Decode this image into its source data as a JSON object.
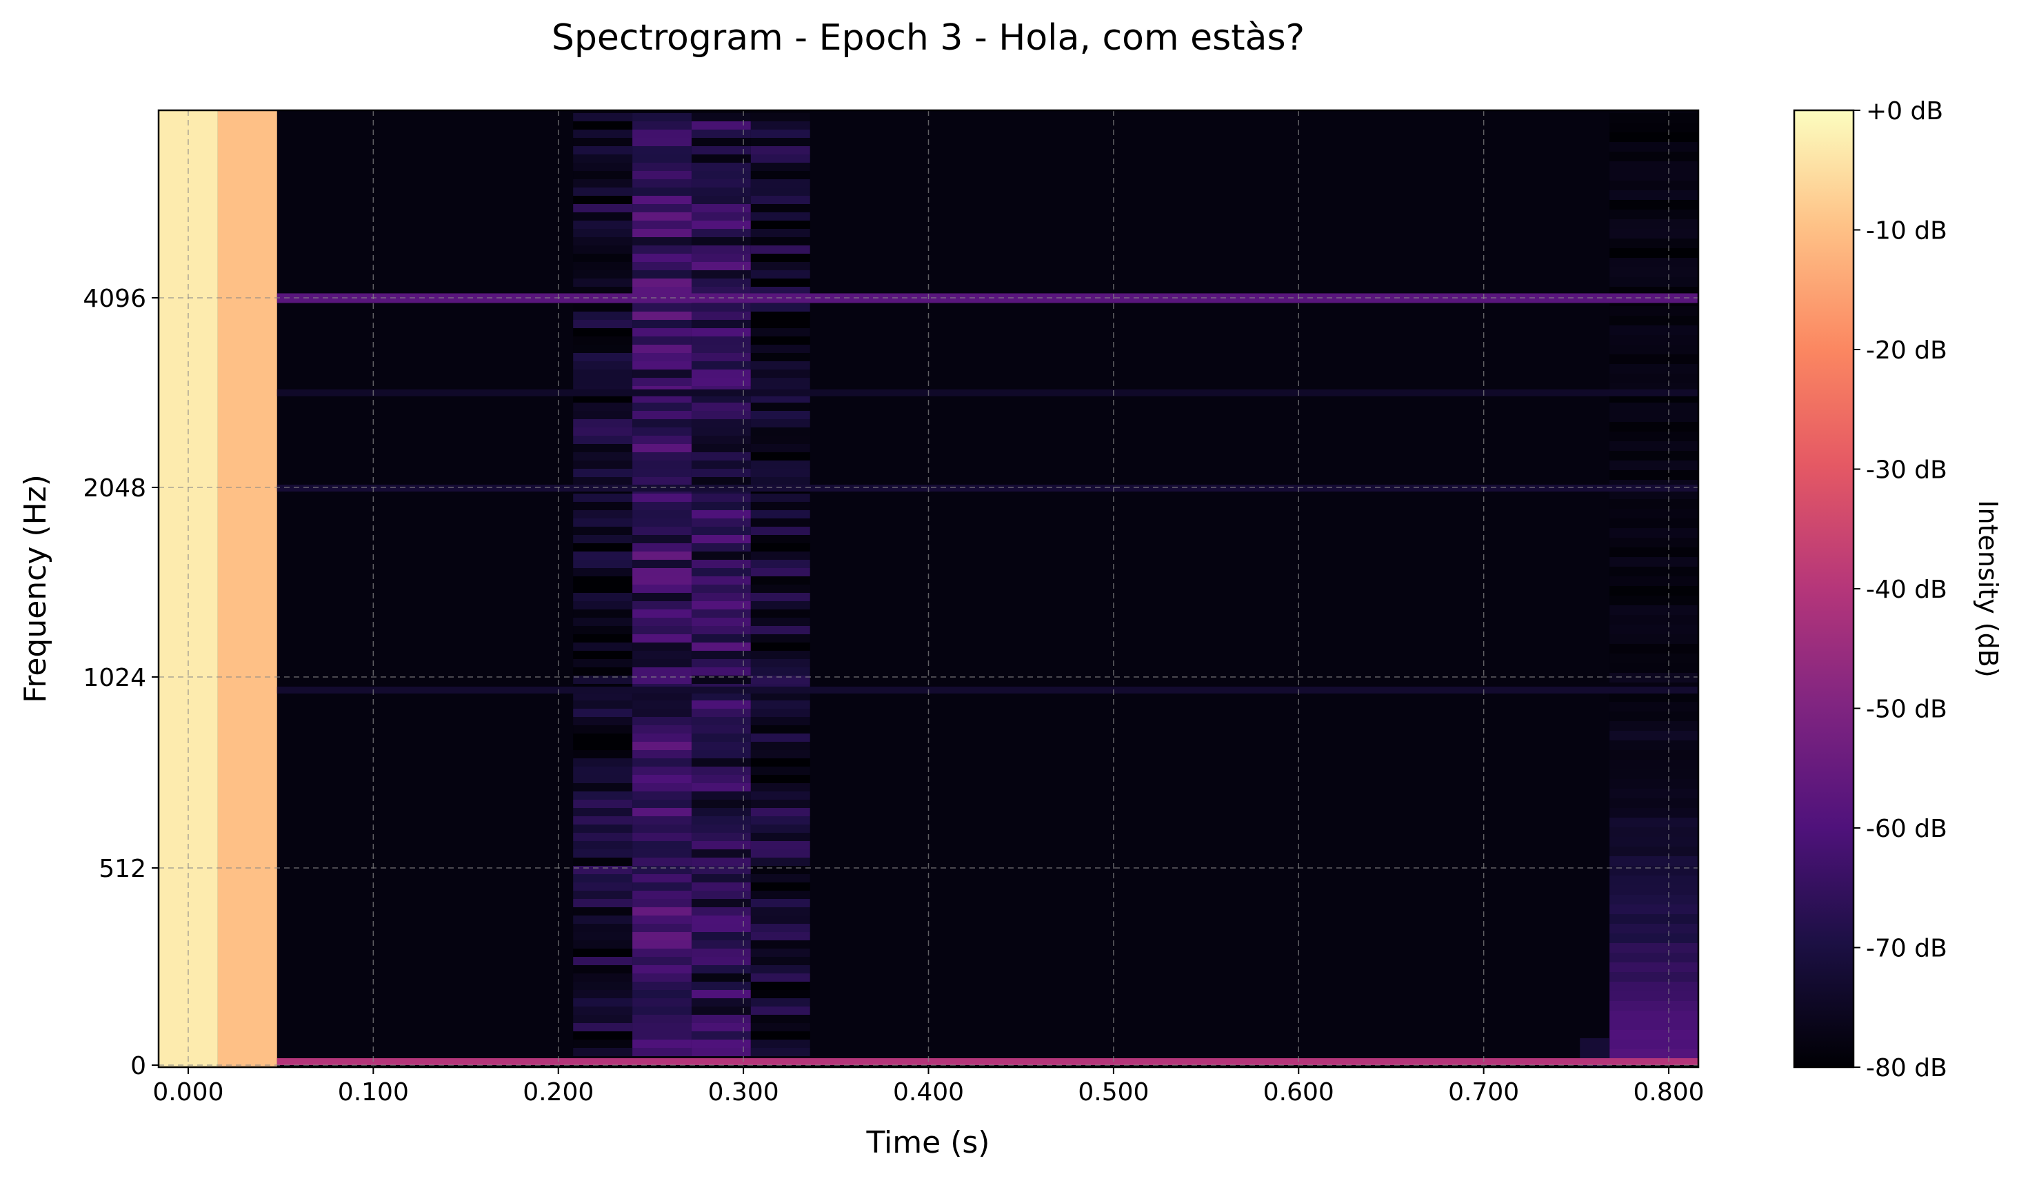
{
  "chart_data": {
    "type": "heatmap",
    "title": "Spectrogram - Epoch 3 - Hola, com estàs?",
    "xlabel": "Time (s)",
    "ylabel": "Frequency (Hz)",
    "xlim": [
      -0.016,
      0.816
    ],
    "x_ticks": [
      {
        "value": 0.0,
        "label": "0.000"
      },
      {
        "value": 0.1,
        "label": "0.100"
      },
      {
        "value": 0.2,
        "label": "0.200"
      },
      {
        "value": 0.3,
        "label": "0.300"
      },
      {
        "value": 0.4,
        "label": "0.400"
      },
      {
        "value": 0.5,
        "label": "0.500"
      },
      {
        "value": 0.6,
        "label": "0.600"
      },
      {
        "value": 0.7,
        "label": "0.700"
      },
      {
        "value": 0.8,
        "label": "0.800"
      }
    ],
    "y_scale": "symlog",
    "y_ticks": [
      {
        "value": 0,
        "label": "0"
      },
      {
        "value": 512,
        "label": "512"
      },
      {
        "value": 1024,
        "label": "1024"
      },
      {
        "value": 2048,
        "label": "2048"
      },
      {
        "value": 4096,
        "label": "4096"
      }
    ],
    "grid": true,
    "colormap": "magma",
    "colorbar": {
      "label": "Intensity (dB)",
      "range": [
        -80,
        0
      ],
      "ticks": [
        "+0 dB",
        "-10 dB",
        "-20 dB",
        "-30 dB",
        "-40 dB",
        "-50 dB",
        "-60 dB",
        "-70 dB",
        "-80 dB"
      ]
    },
    "time_frames": [
      0.0,
      0.032,
      0.064,
      0.096,
      0.128,
      0.16,
      0.192,
      0.224,
      0.256,
      0.288,
      0.32,
      0.352,
      0.384,
      0.416,
      0.448,
      0.48,
      0.512,
      0.544,
      0.576,
      0.608,
      0.64,
      0.672,
      0.704,
      0.736,
      0.768,
      0.8
    ],
    "frame_width_s": 0.032,
    "background_db": -78,
    "columns_db": [
      {
        "t": 0.0,
        "db": -3
      },
      {
        "t": 0.032,
        "db": -10
      }
    ],
    "speech_segment": {
      "t_start": 0.208,
      "t_end": 0.336,
      "peak_db": -60,
      "frames": [
        {
          "t": 0.224,
          "db": -72
        },
        {
          "t": 0.256,
          "db": -62
        },
        {
          "t": 0.288,
          "db": -65
        },
        {
          "t": 0.32,
          "db": -72
        }
      ]
    },
    "tone_lines": [
      {
        "freq_hz": 4096,
        "db": -58
      },
      {
        "freq_hz": 2048,
        "db": -72
      },
      {
        "freq_hz": 2900,
        "db": -74
      },
      {
        "freq_hz": 980,
        "db": -73
      },
      {
        "freq_hz": 0,
        "db": -40
      }
    ],
    "end_burst": {
      "t_start": 0.768,
      "t_end": 0.832,
      "low_freq_db": -55
    }
  }
}
